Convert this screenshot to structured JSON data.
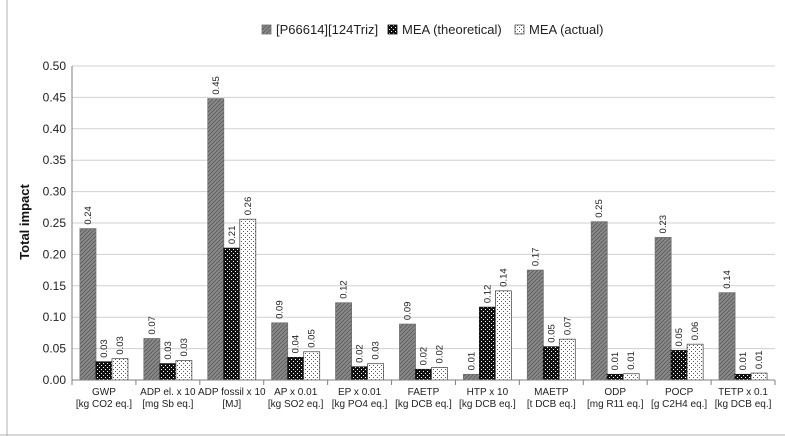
{
  "chart_data": {
    "type": "bar",
    "title": "",
    "xlabel": "",
    "ylabel": "Total impact",
    "ylim": [
      0,
      0.5
    ],
    "yticks": [
      "0.00",
      "0.05",
      "0.10",
      "0.15",
      "0.20",
      "0.25",
      "0.30",
      "0.35",
      "0.40",
      "0.45",
      "0.50"
    ],
    "grid": true,
    "legend_position": "top",
    "categories": [
      [
        "GWP",
        "[kg CO2 eq.]"
      ],
      [
        "ADP el. x 10",
        "[mg Sb eq.]"
      ],
      [
        "ADP fossil x 10",
        "[MJ]"
      ],
      [
        "AP x 0.01",
        "[kg SO2 eq.]"
      ],
      [
        "EP x 0.01",
        "[kg PO4 eq.]"
      ],
      [
        "FAETP",
        "[kg DCB eq.]"
      ],
      [
        "HTP x 10",
        "[kg DCB eq.]"
      ],
      [
        "MAETP",
        "[t DCB eq.]"
      ],
      [
        "ODP",
        "[mg R11 eq.]"
      ],
      [
        "POCP",
        "[g C2H4 eq.]"
      ],
      [
        "TETP x 0.1",
        "[kg DCB eq.]"
      ]
    ],
    "series": [
      {
        "name": "[P66614][124Triz]",
        "fill": "gray-hatched",
        "values": [
          0.241,
          0.066,
          0.448,
          0.091,
          0.123,
          0.089,
          0.009,
          0.175,
          0.252,
          0.227,
          0.139
        ],
        "labels": [
          "0.24",
          "0.07",
          "0.45",
          "0.09",
          "0.12",
          "0.09",
          "0.01",
          "0.17",
          "0.25",
          "0.23",
          "0.14"
        ]
      },
      {
        "name": "MEA (theoretical)",
        "fill": "black-dotted",
        "values": [
          0.029,
          0.026,
          0.21,
          0.036,
          0.021,
          0.017,
          0.116,
          0.053,
          0.009,
          0.047,
          0.009
        ],
        "labels": [
          "0.03",
          "0.03",
          "0.21",
          "0.04",
          "0.02",
          "0.02",
          "0.12",
          "0.05",
          "0.01",
          "0.05",
          "0.01"
        ]
      },
      {
        "name": "MEA (actual)",
        "fill": "white-dotted",
        "values": [
          0.034,
          0.031,
          0.256,
          0.045,
          0.026,
          0.02,
          0.142,
          0.065,
          0.01,
          0.057,
          0.011
        ],
        "labels": [
          "0.03",
          "0.03",
          "0.26",
          "0.05",
          "0.03",
          "0.02",
          "0.14",
          "0.07",
          "0.01",
          "0.06",
          "0.01"
        ]
      }
    ],
    "colors": {
      "series0_base": "#8c8c8c",
      "series0_hatch": "#5a5a5a",
      "series1_base": "#111111",
      "series1_dots": "#ffffff",
      "series2_base": "#ffffff",
      "series2_dots": "#555555",
      "grid": "#d0d0d0",
      "axis": "#7f7f7f"
    }
  }
}
